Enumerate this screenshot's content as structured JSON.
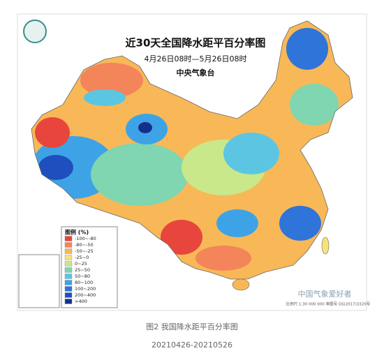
{
  "map": {
    "title": "近30天全国降水距平百分率图",
    "subtitle": "4月26日08时—5月26日08时",
    "issuer": "中央气象台",
    "legend": {
      "title": "图例 (%)",
      "items": [
        {
          "label": "-100~-80",
          "color": "#e8453c"
        },
        {
          "label": "-80~-50",
          "color": "#f4845a"
        },
        {
          "label": "-50~-25",
          "color": "#f8b857"
        },
        {
          "label": "-25~0",
          "color": "#f7e27a"
        },
        {
          "label": "0~25",
          "color": "#c9e88a"
        },
        {
          "label": "25~50",
          "color": "#7fd6b0"
        },
        {
          "label": "50~80",
          "color": "#5cc6e2"
        },
        {
          "label": "80~100",
          "color": "#3ea3e6"
        },
        {
          "label": "100~200",
          "color": "#2f74d8"
        },
        {
          "label": "200~400",
          "color": "#1f4fbf"
        },
        {
          "label": ">400",
          "color": "#142f8c"
        }
      ]
    },
    "watermark": "中国气象爱好者",
    "footnote": "比例尺 1:30 000 000  审图号 GS(2017)3320号"
  },
  "caption": {
    "line1": "图2 我国降水距平百分率图",
    "line2": "20210426-20210526"
  }
}
